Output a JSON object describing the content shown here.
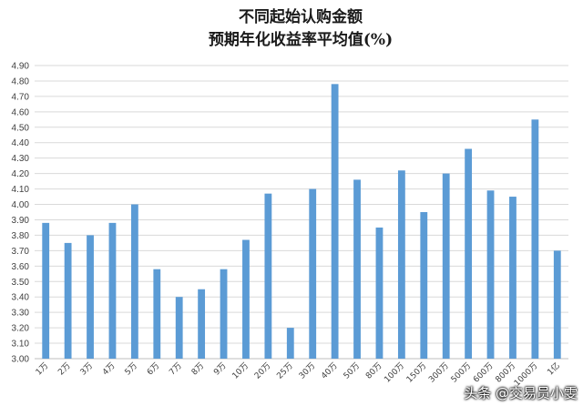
{
  "chart_data": {
    "type": "bar",
    "title_lines": [
      "不同起始认购金额",
      "预期年化收益率平均值(%)"
    ],
    "categories": [
      "1万",
      "2万",
      "3万",
      "4万",
      "5万",
      "6万",
      "7万",
      "8万",
      "9万",
      "10万",
      "20万",
      "25万",
      "30万",
      "40万",
      "50万",
      "80万",
      "100万",
      "150万",
      "300万",
      "500万",
      "600万",
      "800万",
      "1000万",
      "1亿"
    ],
    "values": [
      3.88,
      3.75,
      3.8,
      3.88,
      4.0,
      3.58,
      3.4,
      3.45,
      3.58,
      3.77,
      4.07,
      3.2,
      4.1,
      4.78,
      4.16,
      3.85,
      4.22,
      3.95,
      4.2,
      4.36,
      4.09,
      4.05,
      4.55,
      3.7
    ],
    "ylim": [
      3.0,
      4.9
    ],
    "ytick_step": 0.1,
    "ytick_labels": [
      "3.00",
      "3.10",
      "3.20",
      "3.30",
      "3.40",
      "3.50",
      "3.60",
      "3.70",
      "3.80",
      "3.90",
      "4.00",
      "4.10",
      "4.20",
      "4.30",
      "4.40",
      "4.50",
      "4.60",
      "4.70",
      "4.80",
      "4.90"
    ],
    "grid": true,
    "legend": "none",
    "bar_color": "#5b9bd5"
  },
  "watermark": "头条 @交易员小雯"
}
